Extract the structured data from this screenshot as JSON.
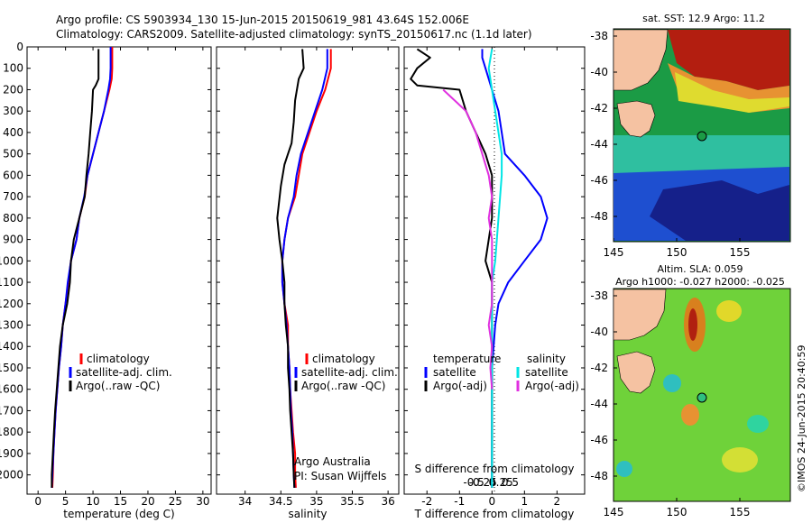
{
  "header": {
    "line1": "Argo profile: CS 5903934_130 15-Jun-2015 20150619_981 43.64S 152.006E",
    "line2": "Climatology: CARS2009. Satellite-adjusted climatology: synTS_20150617.nc (1.1d later)"
  },
  "colors": {
    "climatology": "#ff0000",
    "satellite": "#0000ff",
    "argo": "#000000",
    "satellite_salinity": "#00e5e5",
    "argo_salinity": "#e030e0"
  },
  "chart_data": [
    {
      "type": "line",
      "xlabel": "temperature (deg C)",
      "xticks": [
        "0",
        "5",
        "10",
        "15",
        "20",
        "25",
        "30"
      ],
      "xlim": [
        -2,
        31.5
      ],
      "ylim": [
        2090,
        0
      ],
      "yticks": [
        "0",
        "100",
        "200",
        "300",
        "400",
        "500",
        "600",
        "700",
        "800",
        "900",
        "1000",
        "1100",
        "1200",
        "1300",
        "1400",
        "1500",
        "1600",
        "1700",
        "1800",
        "1900",
        "2000"
      ],
      "legend": [
        "climatology",
        "satellite-adj. clim.",
        "Argo(..raw -QC)"
      ],
      "series": [
        {
          "name": "climatology",
          "color": "#ff0000",
          "points": [
            [
              13.5,
              0
            ],
            [
              13.5,
              100
            ],
            [
              13.4,
              150
            ],
            [
              13,
              200
            ],
            [
              12,
              300
            ],
            [
              11,
              400
            ],
            [
              10,
              500
            ],
            [
              9,
              600
            ],
            [
              8.5,
              700
            ],
            [
              7.5,
              800
            ],
            [
              7,
              900
            ],
            [
              6,
              1000
            ],
            [
              5.5,
              1100
            ],
            [
              5,
              1200
            ],
            [
              4.5,
              1300
            ],
            [
              4.2,
              1400
            ],
            [
              3.8,
              1500
            ],
            [
              3.5,
              1600
            ],
            [
              3.2,
              1700
            ],
            [
              3,
              1800
            ],
            [
              2.8,
              1900
            ],
            [
              2.7,
              2000
            ],
            [
              2.6,
              2060
            ]
          ]
        },
        {
          "name": "satellite-adj. clim.",
          "color": "#0000ff",
          "points": [
            [
              13.2,
              0
            ],
            [
              13.2,
              100
            ],
            [
              13.1,
              150
            ],
            [
              12.8,
              200
            ],
            [
              12,
              300
            ],
            [
              11,
              400
            ],
            [
              10,
              500
            ],
            [
              9,
              600
            ],
            [
              8.4,
              700
            ],
            [
              7.5,
              800
            ],
            [
              7,
              900
            ],
            [
              6,
              1000
            ],
            [
              5.4,
              1100
            ],
            [
              5,
              1200
            ],
            [
              4.5,
              1300
            ],
            [
              4.2,
              1400
            ],
            [
              3.8,
              1500
            ],
            [
              3.5,
              1600
            ],
            [
              3.2,
              1700
            ],
            [
              3,
              1800
            ],
            [
              2.8,
              1900
            ],
            [
              2.6,
              2000
            ],
            [
              2.5,
              2060
            ]
          ]
        },
        {
          "name": "Argo(..raw -QC)",
          "color": "#000000",
          "points": [
            [
              11,
              10
            ],
            [
              11,
              50
            ],
            [
              11,
              150
            ],
            [
              10.5,
              180
            ],
            [
              10,
              200
            ],
            [
              9.8,
              300
            ],
            [
              9.5,
              400
            ],
            [
              9.2,
              500
            ],
            [
              8.8,
              600
            ],
            [
              8.5,
              700
            ],
            [
              7.5,
              800
            ],
            [
              6.5,
              900
            ],
            [
              6,
              1000
            ],
            [
              5.8,
              1100
            ],
            [
              5.3,
              1200
            ],
            [
              4.5,
              1300
            ],
            [
              4,
              1400
            ],
            [
              3.7,
              1500
            ],
            [
              3.4,
              1600
            ],
            [
              3.1,
              1700
            ],
            [
              2.9,
              1800
            ],
            [
              2.7,
              1900
            ],
            [
              2.5,
              2000
            ],
            [
              2.5,
              2060
            ]
          ]
        }
      ]
    },
    {
      "type": "line",
      "xlabel": "salinity",
      "xticks": [
        "34",
        "34.5",
        "35",
        "35.5",
        "36"
      ],
      "xlim": [
        33.6,
        36.15
      ],
      "ylim": [
        2090,
        0
      ],
      "legend": [
        "climatology",
        "satellite-adj. clim.",
        "Argo(..raw -QC)"
      ],
      "annotation": [
        "Argo Australia",
        "PI: Susan Wijffels"
      ],
      "series": [
        {
          "name": "climatology",
          "color": "#ff0000",
          "points": [
            [
              35.2,
              10
            ],
            [
              35.2,
              50
            ],
            [
              35.2,
              100
            ],
            [
              35.12,
              200
            ],
            [
              35,
              300
            ],
            [
              34.9,
              400
            ],
            [
              34.8,
              500
            ],
            [
              34.75,
              600
            ],
            [
              34.7,
              700
            ],
            [
              34.6,
              800
            ],
            [
              34.55,
              900
            ],
            [
              34.52,
              1000
            ],
            [
              34.52,
              1100
            ],
            [
              34.55,
              1200
            ],
            [
              34.6,
              1300
            ],
            [
              34.6,
              1400
            ],
            [
              34.62,
              1500
            ],
            [
              34.63,
              1600
            ],
            [
              34.65,
              1700
            ],
            [
              34.67,
              1800
            ],
            [
              34.7,
              1900
            ],
            [
              34.7,
              2000
            ],
            [
              34.71,
              2060
            ]
          ]
        },
        {
          "name": "satellite-adj. clim.",
          "color": "#0000ff",
          "points": [
            [
              35.15,
              10
            ],
            [
              35.15,
              50
            ],
            [
              35.15,
              100
            ],
            [
              35.08,
              200
            ],
            [
              34.98,
              300
            ],
            [
              34.88,
              400
            ],
            [
              34.78,
              500
            ],
            [
              34.72,
              600
            ],
            [
              34.68,
              700
            ],
            [
              34.6,
              800
            ],
            [
              34.55,
              900
            ],
            [
              34.52,
              1000
            ],
            [
              34.52,
              1100
            ],
            [
              34.55,
              1200
            ],
            [
              34.58,
              1300
            ],
            [
              34.6,
              1400
            ],
            [
              34.62,
              1500
            ],
            [
              34.63,
              1600
            ],
            [
              34.64,
              1700
            ],
            [
              34.66,
              1800
            ],
            [
              34.67,
              1900
            ],
            [
              34.68,
              2000
            ],
            [
              34.69,
              2060
            ]
          ]
        },
        {
          "name": "Argo(..raw -QC)",
          "color": "#000000",
          "points": [
            [
              34.8,
              10
            ],
            [
              34.82,
              100
            ],
            [
              34.75,
              150
            ],
            [
              34.7,
              250
            ],
            [
              34.68,
              350
            ],
            [
              34.65,
              450
            ],
            [
              34.6,
              500
            ],
            [
              34.55,
              550
            ],
            [
              34.5,
              650
            ],
            [
              34.45,
              800
            ],
            [
              34.48,
              900
            ],
            [
              34.52,
              1000
            ],
            [
              34.55,
              1100
            ],
            [
              34.55,
              1200
            ],
            [
              34.57,
              1300
            ],
            [
              34.6,
              1400
            ],
            [
              34.6,
              1500
            ],
            [
              34.62,
              1600
            ],
            [
              34.63,
              1700
            ],
            [
              34.65,
              1800
            ],
            [
              34.67,
              1900
            ],
            [
              34.68,
              2000
            ],
            [
              34.69,
              2060
            ]
          ]
        }
      ]
    },
    {
      "type": "line",
      "xlabel": "T difference from climatology",
      "xlabel2": "S difference from climatology",
      "xticks": [
        "-2",
        "-1",
        "0",
        "1",
        "2"
      ],
      "xticks2": [
        "-0.5",
        "-0.25",
        "0",
        "0.25",
        "0.5"
      ],
      "xlim": [
        -2.7,
        2.85
      ],
      "ylim": [
        2090,
        0
      ],
      "legend_titles": [
        "temperature",
        "salinity"
      ],
      "legend": [
        "satellite",
        "Argo(-adj)",
        "satellite",
        "Argo(-adj)"
      ],
      "series": [
        {
          "name": "satellite",
          "color": "#0000ff",
          "points": [
            [
              -0.3,
              10
            ],
            [
              -0.3,
              50
            ],
            [
              -0.2,
              100
            ],
            [
              -0.1,
              150
            ],
            [
              0,
              200
            ],
            [
              0.2,
              300
            ],
            [
              0.3,
              400
            ],
            [
              0.4,
              500
            ],
            [
              1,
              600
            ],
            [
              1.5,
              700
            ],
            [
              1.7,
              800
            ],
            [
              1.5,
              900
            ],
            [
              1,
              1000
            ],
            [
              0.5,
              1100
            ],
            [
              0.2,
              1200
            ],
            [
              0.1,
              1300
            ],
            [
              0.05,
              1400
            ],
            [
              0,
              1500
            ],
            [
              0,
              1600
            ],
            [
              0,
              1700
            ],
            [
              0,
              1800
            ],
            [
              0,
              1900
            ],
            [
              0,
              2000
            ],
            [
              0,
              2060
            ]
          ]
        },
        {
          "name": "Argo(-adj)",
          "color": "#000000",
          "points": [
            [
              -2.3,
              10
            ],
            [
              -1.9,
              50
            ],
            [
              -2.3,
              100
            ],
            [
              -2.5,
              150
            ],
            [
              -2.3,
              180
            ],
            [
              -1,
              200
            ],
            [
              -0.8,
              300
            ],
            [
              -0.5,
              400
            ],
            [
              -0.2,
              500
            ],
            [
              0,
              600
            ],
            [
              0,
              700
            ],
            [
              0,
              800
            ],
            [
              -0.1,
              900
            ],
            [
              -0.2,
              1000
            ],
            [
              0,
              1100
            ],
            [
              0,
              1200
            ],
            [
              0,
              1300
            ],
            [
              0,
              1400
            ],
            [
              0,
              1500
            ],
            [
              0,
              1600
            ],
            [
              0,
              1700
            ],
            [
              0,
              1800
            ],
            [
              0,
              1900
            ],
            [
              0,
              2000
            ],
            [
              0,
              2060
            ]
          ]
        },
        {
          "name": "satellite",
          "color": "#00e5e5",
          "points": [
            [
              0,
              10
            ],
            [
              -0.1,
              100
            ],
            [
              0,
              200
            ],
            [
              0.1,
              300
            ],
            [
              0.2,
              400
            ],
            [
              0.3,
              500
            ],
            [
              0.3,
              600
            ],
            [
              0.25,
              700
            ],
            [
              0.2,
              800
            ],
            [
              0.15,
              900
            ],
            [
              0.1,
              1000
            ],
            [
              0,
              1100
            ],
            [
              0,
              1200
            ],
            [
              0,
              1300
            ],
            [
              0,
              1400
            ],
            [
              0,
              1500
            ],
            [
              0,
              1600
            ],
            [
              0,
              1700
            ],
            [
              0,
              1800
            ],
            [
              0,
              1900
            ],
            [
              0,
              2000
            ],
            [
              0,
              2060
            ]
          ]
        },
        {
          "name": "Argo(-adj)",
          "color": "#e030e0",
          "points": [
            [
              -1.5,
              200
            ],
            [
              -0.8,
              300
            ],
            [
              -0.5,
              400
            ],
            [
              -0.3,
              500
            ],
            [
              -0.1,
              600
            ],
            [
              0,
              700
            ],
            [
              -0.1,
              800
            ],
            [
              0,
              900
            ],
            [
              0,
              1000
            ],
            [
              0,
              1100
            ],
            [
              0,
              1200
            ],
            [
              -0.1,
              1300
            ],
            [
              0,
              1400
            ],
            [
              -0.05,
              1500
            ],
            [
              0,
              1600
            ]
          ]
        }
      ]
    }
  ],
  "maps": [
    {
      "title": "sat. SST: 12.9  Argo: 11.2",
      "xticks": [
        "145",
        "150",
        "155"
      ],
      "yticks": [
        "-38",
        "-40",
        "-42",
        "-44",
        "-46",
        "-48"
      ]
    },
    {
      "title_lines": [
        "Altim. SLA: 0.059",
        "Argo h1000: -0.027 h2000: -0.025"
      ],
      "xticks": [
        "145",
        "150",
        "155"
      ],
      "yticks": [
        "-38",
        "-40",
        "-42",
        "-44",
        "-46",
        "-48"
      ]
    }
  ],
  "footer": {
    "credit": "©IMOS 24-Jun-2015 20:40:59"
  }
}
